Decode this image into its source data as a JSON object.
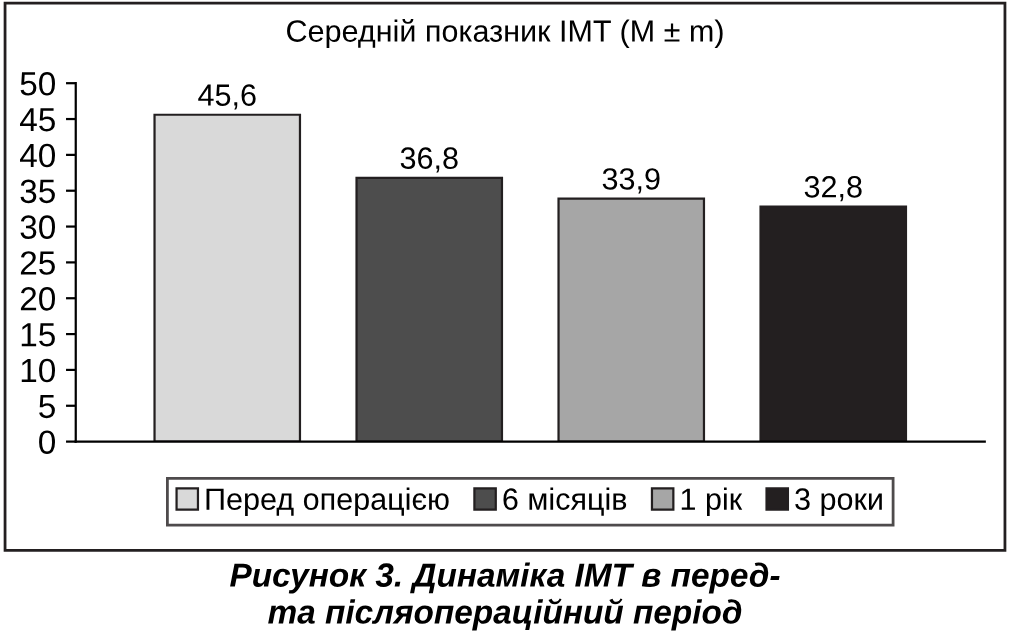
{
  "chart_data": {
    "type": "bar",
    "title": "Середній показник IMT (M ± m)",
    "categories": [
      null
    ],
    "series": [
      {
        "name": "Перед операцією",
        "color": "#d9d9d9",
        "values": [
          45.6
        ],
        "value_labels": [
          "45,6"
        ]
      },
      {
        "name": "6 місяців",
        "color": "#4d4d4d",
        "values": [
          36.8
        ],
        "value_labels": [
          "36,8"
        ]
      },
      {
        "name": "1 рік",
        "color": "#a6a6a6",
        "values": [
          33.9
        ],
        "value_labels": [
          "33,9"
        ]
      },
      {
        "name": "3 роки",
        "color": "#231f20",
        "values": [
          32.8
        ],
        "value_labels": [
          "32,8"
        ]
      }
    ],
    "ylim": [
      0,
      50
    ],
    "yticks": [
      0,
      5,
      10,
      15,
      20,
      25,
      30,
      35,
      40,
      45,
      50
    ],
    "grid": false,
    "legend": "bottom",
    "annotations": [
      "Рисунок 3. Динаміка IMT в перед-\nта післяопераційний період"
    ]
  }
}
